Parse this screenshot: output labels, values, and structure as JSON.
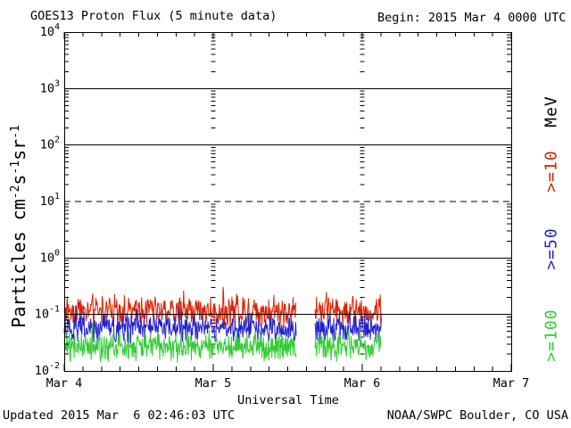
{
  "header": {
    "title": "GOES13 Proton Flux (5 minute data)",
    "begin_label": "Begin: 2015 Mar 4 0000 UTC"
  },
  "y_axis": {
    "title_parts": [
      {
        "t": "Particles cm"
      },
      {
        "t": "-2",
        "sup": true
      },
      {
        "t": "s",
        "sup": false
      },
      {
        "t": "-1",
        "sup": true
      },
      {
        "t": "sr",
        "sup": false
      },
      {
        "t": "-1",
        "sup": true
      }
    ],
    "tick_base": "10",
    "tick_exponents": [
      4,
      3,
      2,
      1,
      0,
      -1,
      -2
    ]
  },
  "x_axis": {
    "title": "Universal Time",
    "tick_labels": [
      "Mar 4",
      "Mar 5",
      "Mar 6",
      "Mar 7"
    ]
  },
  "right_panel": {
    "unit_label": "MeV",
    "unit_color": "#000000",
    "series_labels": [
      {
        "text": ">=10",
        "color": "#cc2200"
      },
      {
        "text": ">=50",
        "color": "#2222bb"
      },
      {
        "text": ">=100",
        "color": "#33cc33"
      }
    ]
  },
  "footer": {
    "updated": "Updated 2015 Mar  6 02:46:03 UTC",
    "source": "NOAA/SWPC Boulder, CO USA"
  },
  "chart_data": {
    "type": "line",
    "title": "GOES13 Proton Flux (5 minute data)",
    "xlabel": "Universal Time",
    "ylabel": "Particles cm-2 s-1 sr-1",
    "x_start": "2015 Mar 4 0000 UTC",
    "x_end": "2015 Mar 7 0000 UTC",
    "x_span_days": 3,
    "y_scale": "log10",
    "y_log10_range": [
      -2,
      4
    ],
    "cadence_minutes": 5,
    "legend_position": "right-margin-rotated",
    "grid": {
      "h_solid_log10": [
        3,
        2,
        0,
        -1
      ],
      "h_dashed_log10": [
        1
      ],
      "v_dashed_days": [
        1,
        2
      ]
    },
    "data_segments_days": [
      [
        0,
        1.557
      ],
      [
        1.683,
        2.128
      ]
    ],
    "data_gap_days": [
      1.557,
      1.683
    ],
    "series": [
      {
        "name": "Proton flux >=10 MeV",
        "color": "#dd2200",
        "log10_mean": -0.93,
        "log10_spread": 0.32,
        "seed": 1234,
        "approx_flux_mean": 0.12,
        "approx_flux_range": [
          0.06,
          0.3
        ]
      },
      {
        "name": "Proton flux >=50 MeV",
        "color": "#2222cc",
        "log10_mean": -1.24,
        "log10_spread": 0.3,
        "seed": 5678,
        "approx_flux_mean": 0.058,
        "approx_flux_range": [
          0.032,
          0.12
        ]
      },
      {
        "name": "Proton flux >=100 MeV",
        "color": "#33cc33",
        "log10_mean": -1.57,
        "log10_spread": 0.3,
        "seed": 9012,
        "approx_flux_mean": 0.027,
        "approx_flux_range": [
          0.014,
          0.055
        ]
      }
    ]
  }
}
